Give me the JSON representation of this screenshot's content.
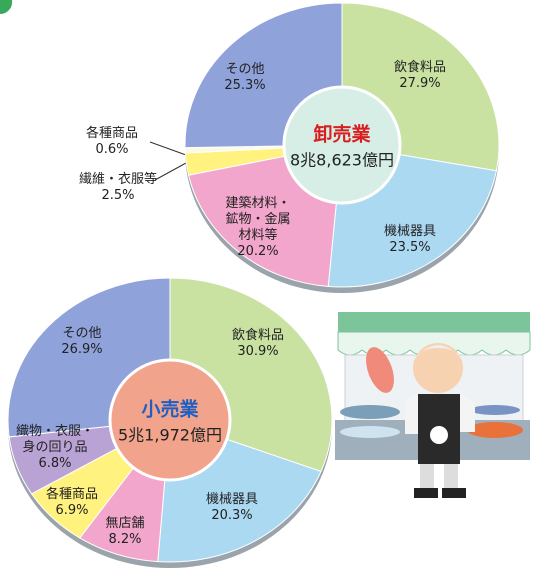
{
  "chart_data": [
    {
      "type": "pie",
      "title": "卸売業",
      "subtitle": "8兆8,623億円",
      "title_color": "#d81e1e",
      "center_color": "#d6eee6",
      "categories": [
        "飲食料品",
        "機械器具",
        "建築材料・\n鉱物・金属\n材料等",
        "繊維・衣服等",
        "各種商品",
        "その他"
      ],
      "values": [
        27.9,
        23.5,
        20.2,
        2.5,
        0.6,
        25.3
      ],
      "value_labels": [
        "27.9%",
        "23.5%",
        "20.2%",
        "2.5%",
        "0.6%",
        "25.3%"
      ],
      "colors": [
        "#c9e2a2",
        "#acd9f2",
        "#f2a6cb",
        "#fff27e",
        "#fbfbe4",
        "#8fa2da"
      ]
    },
    {
      "type": "pie",
      "title": "小売業",
      "subtitle": "5兆1,972億円",
      "title_color": "#1f5fc4",
      "center_color": "#f2a38b",
      "categories": [
        "飲食料品",
        "機械器具",
        "無店舗",
        "各種商品",
        "織物・衣服・\n身の回り品",
        "その他"
      ],
      "values": [
        30.9,
        20.3,
        8.2,
        6.9,
        6.8,
        26.9
      ],
      "value_labels": [
        "30.9%",
        "20.3%",
        "8.2%",
        "6.9%",
        "6.8%",
        "26.9%"
      ],
      "colors": [
        "#c9e2a2",
        "#acd9f2",
        "#f2a6cb",
        "#fff27e",
        "#b9a3d4",
        "#8fa2da"
      ]
    }
  ]
}
